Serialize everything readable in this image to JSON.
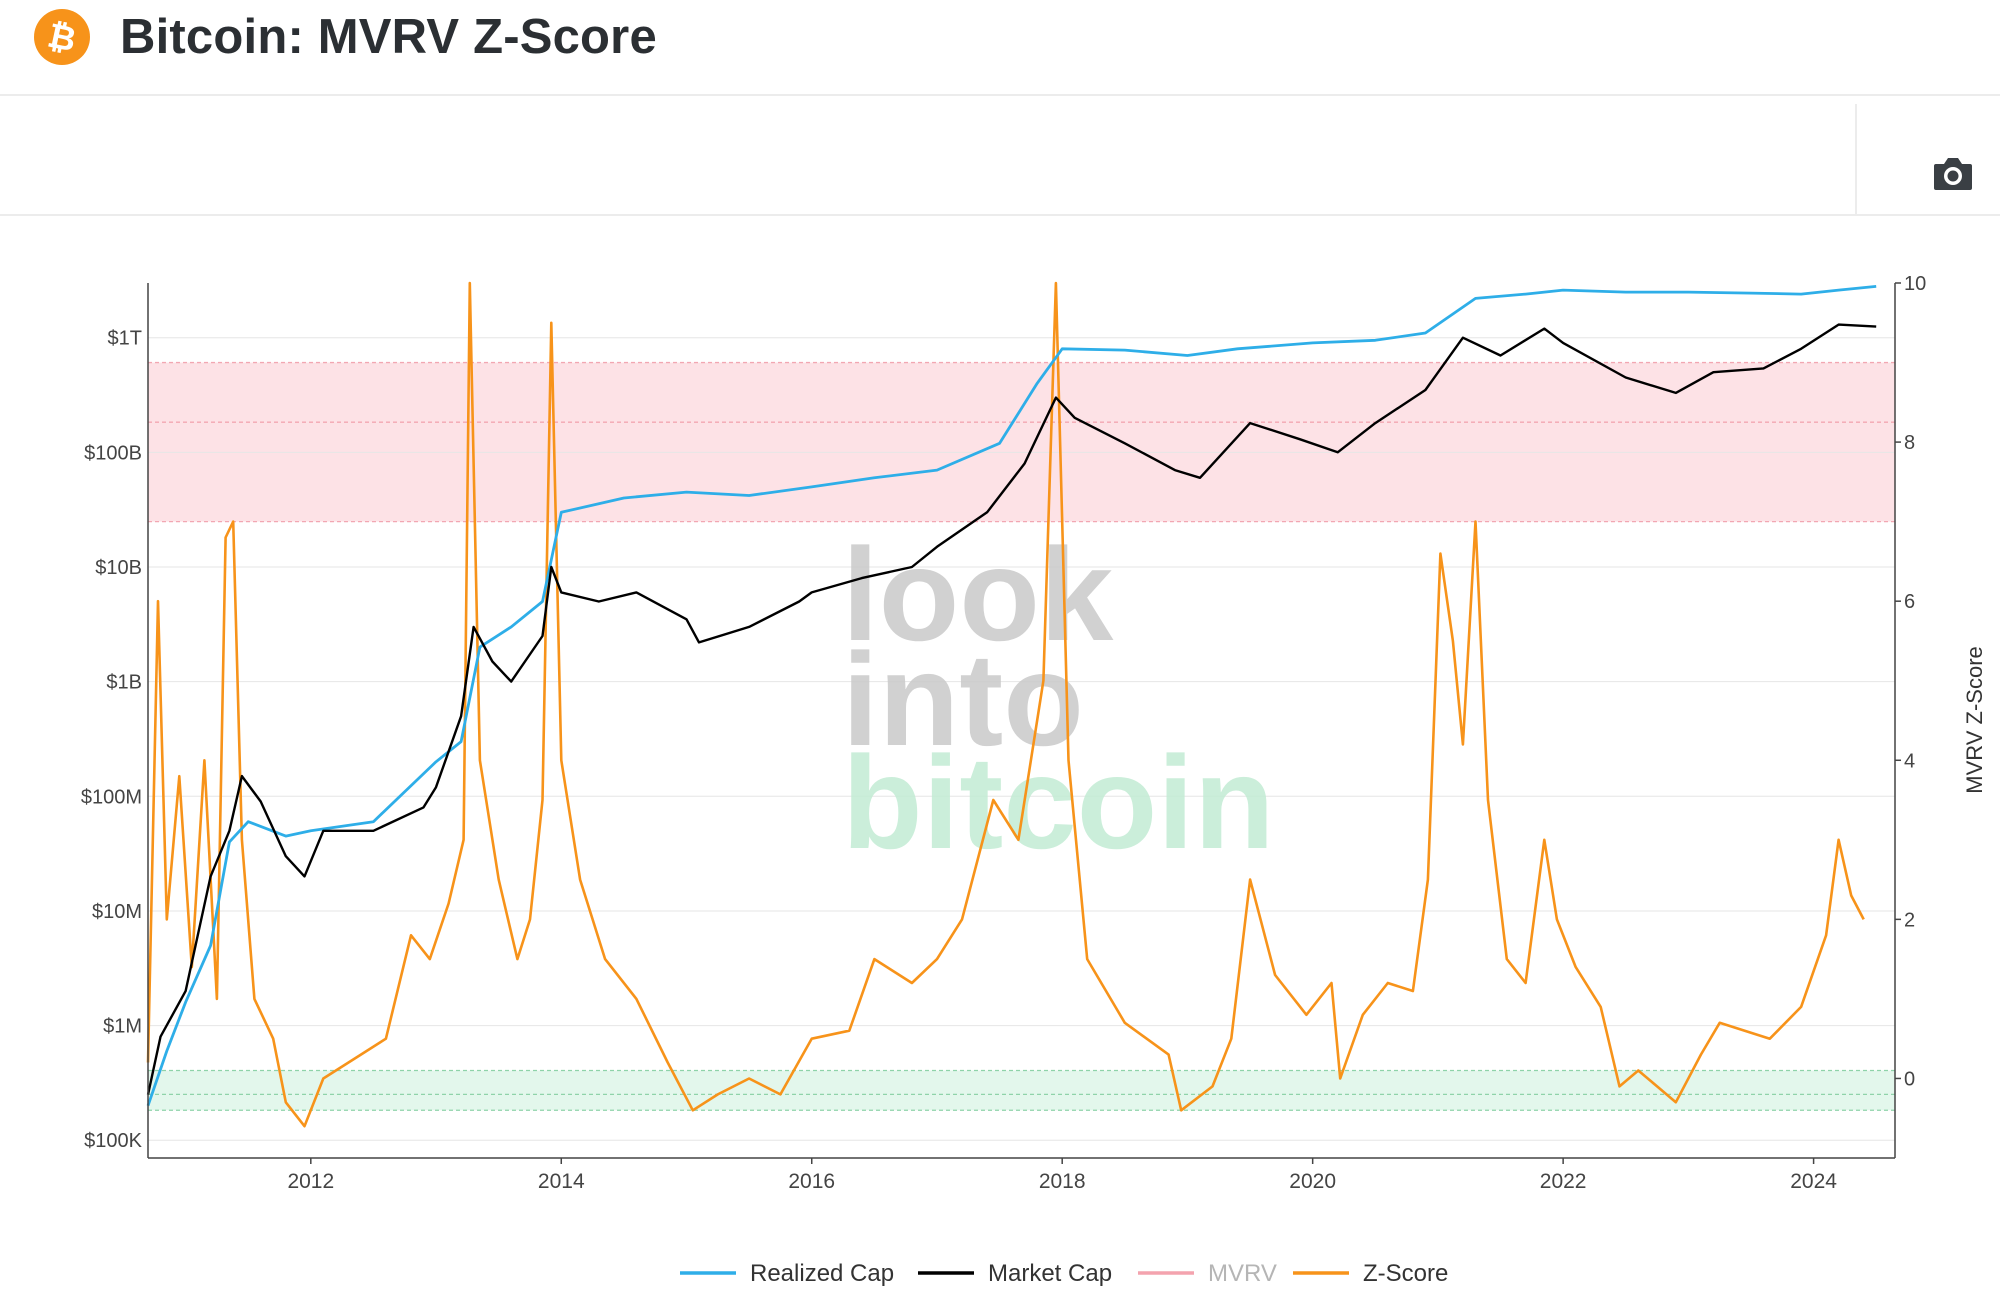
{
  "header": {
    "title": "Bitcoin: MVRV Z-Score",
    "logo_icon": "bitcoin-logo-icon",
    "logo_glyph": "₿",
    "logo_color": "#f7931a"
  },
  "toolbar": {
    "camera_icon": "camera-icon"
  },
  "watermark": {
    "line1": "look",
    "line2": "into",
    "line3": "bitcoin"
  },
  "chart_data": {
    "type": "line",
    "title": "",
    "xlabel": "",
    "y_left": {
      "scale": "log",
      "range": [
        70000,
        3000000000000
      ],
      "ticks": [
        100000,
        1000000,
        10000000,
        100000000,
        1000000000,
        10000000000,
        100000000000,
        1000000000000
      ],
      "tick_labels": [
        "$100K",
        "$1M",
        "$10M",
        "$100M",
        "$1B",
        "$10B",
        "$100B",
        "$1T"
      ]
    },
    "y_right": {
      "label": "MVRV Z-Score",
      "range": [
        -1,
        10
      ],
      "ticks": [
        0,
        2,
        4,
        6,
        8,
        10
      ],
      "tick_labels": [
        "0",
        "2",
        "4",
        "6",
        "8",
        "10"
      ]
    },
    "x": {
      "range": [
        2010.7,
        2024.65
      ],
      "ticks": [
        2012,
        2014,
        2016,
        2018,
        2020,
        2022,
        2024
      ],
      "tick_labels": [
        "2012",
        "2014",
        "2016",
        "2018",
        "2020",
        "2022",
        "2024"
      ]
    },
    "bands": [
      {
        "name": "overvalued-zone",
        "from": 7,
        "to": 9,
        "color": "#fde2e6",
        "lines": [
          7,
          8.25,
          9
        ]
      },
      {
        "name": "undervalued-zone",
        "from": -0.4,
        "to": 0.1,
        "color": "#e3f7ec",
        "lines": [
          -0.4,
          -0.2,
          0.1
        ]
      }
    ],
    "legend": {
      "placement": "bottom-center",
      "items": [
        {
          "name": "Realized Cap",
          "color": "#2eaee8",
          "muted": false
        },
        {
          "name": "Market Cap",
          "color": "#000000",
          "muted": false
        },
        {
          "name": "MVRV",
          "color": "#f4a3ae",
          "muted": true
        },
        {
          "name": "Z-Score",
          "color": "#f7931a",
          "muted": false
        }
      ]
    },
    "series": [
      {
        "name": "Realized Cap",
        "axis": "left",
        "color": "#2eaee8",
        "points": [
          [
            2010.7,
            200000
          ],
          [
            2010.85,
            600000
          ],
          [
            2011.0,
            1600000
          ],
          [
            2011.2,
            5000000
          ],
          [
            2011.35,
            40000000
          ],
          [
            2011.5,
            60000000
          ],
          [
            2011.8,
            45000000
          ],
          [
            2012.0,
            50000000
          ],
          [
            2012.5,
            60000000
          ],
          [
            2013.0,
            200000000
          ],
          [
            2013.2,
            300000000
          ],
          [
            2013.35,
            2000000000
          ],
          [
            2013.6,
            3000000000
          ],
          [
            2013.85,
            5000000000
          ],
          [
            2014.0,
            30000000000
          ],
          [
            2014.5,
            40000000000
          ],
          [
            2015.0,
            45000000000
          ],
          [
            2015.5,
            42000000000
          ],
          [
            2016.0,
            50000000000
          ],
          [
            2016.5,
            60000000000
          ],
          [
            2017.0,
            70000000000
          ],
          [
            2017.5,
            120000000000
          ],
          [
            2017.8,
            400000000000
          ],
          [
            2018.0,
            800000000000
          ],
          [
            2018.5,
            780000000000
          ],
          [
            2019.0,
            700000000000
          ],
          [
            2019.4,
            800000000000
          ],
          [
            2020.0,
            900000000000
          ],
          [
            2020.5,
            950000000000
          ],
          [
            2020.9,
            1100000000000
          ],
          [
            2021.3,
            2200000000000
          ],
          [
            2021.7,
            2400000000000
          ],
          [
            2022.0,
            2600000000000
          ],
          [
            2022.5,
            2500000000000
          ],
          [
            2023.0,
            2500000000000
          ],
          [
            2023.5,
            2450000000000
          ],
          [
            2023.9,
            2400000000000
          ],
          [
            2024.2,
            2600000000000
          ],
          [
            2024.5,
            2800000000000
          ]
        ]
      },
      {
        "name": "Market Cap",
        "axis": "left",
        "color": "#000000",
        "points": [
          [
            2010.7,
            250000
          ],
          [
            2010.8,
            800000
          ],
          [
            2011.0,
            2000000
          ],
          [
            2011.2,
            20000000
          ],
          [
            2011.35,
            50000000
          ],
          [
            2011.45,
            150000000
          ],
          [
            2011.6,
            90000000
          ],
          [
            2011.8,
            30000000
          ],
          [
            2011.95,
            20000000
          ],
          [
            2012.1,
            50000000
          ],
          [
            2012.5,
            50000000
          ],
          [
            2012.9,
            80000000
          ],
          [
            2013.0,
            120000000
          ],
          [
            2013.2,
            500000000
          ],
          [
            2013.3,
            3000000000
          ],
          [
            2013.45,
            1500000000
          ],
          [
            2013.6,
            1000000000
          ],
          [
            2013.85,
            2500000000
          ],
          [
            2013.92,
            10000000000
          ],
          [
            2014.0,
            6000000000
          ],
          [
            2014.3,
            5000000000
          ],
          [
            2014.6,
            6000000000
          ],
          [
            2015.0,
            3500000000
          ],
          [
            2015.1,
            2200000000
          ],
          [
            2015.5,
            3000000000
          ],
          [
            2015.9,
            5000000000
          ],
          [
            2016.0,
            6000000000
          ],
          [
            2016.4,
            8000000000
          ],
          [
            2016.8,
            10000000000
          ],
          [
            2017.0,
            15000000000
          ],
          [
            2017.4,
            30000000000
          ],
          [
            2017.7,
            80000000000
          ],
          [
            2017.95,
            300000000000
          ],
          [
            2018.1,
            200000000000
          ],
          [
            2018.5,
            120000000000
          ],
          [
            2018.9,
            70000000000
          ],
          [
            2019.1,
            60000000000
          ],
          [
            2019.5,
            180000000000
          ],
          [
            2019.9,
            130000000000
          ],
          [
            2020.2,
            100000000000
          ],
          [
            2020.5,
            180000000000
          ],
          [
            2020.9,
            350000000000
          ],
          [
            2021.2,
            1000000000000
          ],
          [
            2021.5,
            700000000000
          ],
          [
            2021.85,
            1200000000000
          ],
          [
            2022.0,
            900000000000
          ],
          [
            2022.5,
            450000000000
          ],
          [
            2022.9,
            330000000000
          ],
          [
            2023.2,
            500000000000
          ],
          [
            2023.6,
            540000000000
          ],
          [
            2023.9,
            800000000000
          ],
          [
            2024.2,
            1300000000000
          ],
          [
            2024.5,
            1250000000000
          ]
        ]
      },
      {
        "name": "Z-Score",
        "axis": "right",
        "color": "#f7931a",
        "points": [
          [
            2010.7,
            0.2
          ],
          [
            2010.78,
            6.0
          ],
          [
            2010.85,
            2.0
          ],
          [
            2010.95,
            3.8
          ],
          [
            2011.05,
            1.4
          ],
          [
            2011.15,
            4.0
          ],
          [
            2011.25,
            1.0
          ],
          [
            2011.32,
            6.8
          ],
          [
            2011.38,
            7.0
          ],
          [
            2011.45,
            3.0
          ],
          [
            2011.55,
            1.0
          ],
          [
            2011.7,
            0.5
          ],
          [
            2011.8,
            -0.3
          ],
          [
            2011.95,
            -0.6
          ],
          [
            2012.1,
            0.0
          ],
          [
            2012.4,
            0.3
          ],
          [
            2012.6,
            0.5
          ],
          [
            2012.8,
            1.8
          ],
          [
            2012.95,
            1.5
          ],
          [
            2013.1,
            2.2
          ],
          [
            2013.22,
            3.0
          ],
          [
            2013.27,
            10.0
          ],
          [
            2013.35,
            4.0
          ],
          [
            2013.5,
            2.5
          ],
          [
            2013.65,
            1.5
          ],
          [
            2013.75,
            2.0
          ],
          [
            2013.85,
            3.5
          ],
          [
            2013.92,
            9.5
          ],
          [
            2014.0,
            4.0
          ],
          [
            2014.15,
            2.5
          ],
          [
            2014.35,
            1.5
          ],
          [
            2014.6,
            1.0
          ],
          [
            2014.85,
            0.2
          ],
          [
            2015.05,
            -0.4
          ],
          [
            2015.25,
            -0.2
          ],
          [
            2015.5,
            0.0
          ],
          [
            2015.75,
            -0.2
          ],
          [
            2016.0,
            0.5
          ],
          [
            2016.3,
            0.6
          ],
          [
            2016.5,
            1.5
          ],
          [
            2016.8,
            1.2
          ],
          [
            2017.0,
            1.5
          ],
          [
            2017.2,
            2.0
          ],
          [
            2017.45,
            3.5
          ],
          [
            2017.65,
            3.0
          ],
          [
            2017.85,
            5.0
          ],
          [
            2017.95,
            10.0
          ],
          [
            2018.05,
            4.0
          ],
          [
            2018.2,
            1.5
          ],
          [
            2018.5,
            0.7
          ],
          [
            2018.85,
            0.3
          ],
          [
            2018.95,
            -0.4
          ],
          [
            2019.2,
            -0.1
          ],
          [
            2019.35,
            0.5
          ],
          [
            2019.5,
            2.5
          ],
          [
            2019.7,
            1.3
          ],
          [
            2019.95,
            0.8
          ],
          [
            2020.15,
            1.2
          ],
          [
            2020.22,
            0.0
          ],
          [
            2020.4,
            0.8
          ],
          [
            2020.6,
            1.2
          ],
          [
            2020.8,
            1.1
          ],
          [
            2020.92,
            2.5
          ],
          [
            2021.02,
            6.6
          ],
          [
            2021.12,
            5.5
          ],
          [
            2021.2,
            4.2
          ],
          [
            2021.3,
            7.0
          ],
          [
            2021.4,
            3.5
          ],
          [
            2021.55,
            1.5
          ],
          [
            2021.7,
            1.2
          ],
          [
            2021.85,
            3.0
          ],
          [
            2021.95,
            2.0
          ],
          [
            2022.1,
            1.4
          ],
          [
            2022.3,
            0.9
          ],
          [
            2022.45,
            -0.1
          ],
          [
            2022.6,
            0.1
          ],
          [
            2022.75,
            -0.1
          ],
          [
            2022.9,
            -0.3
          ],
          [
            2023.1,
            0.3
          ],
          [
            2023.25,
            0.7
          ],
          [
            2023.45,
            0.6
          ],
          [
            2023.65,
            0.5
          ],
          [
            2023.9,
            0.9
          ],
          [
            2024.1,
            1.8
          ],
          [
            2024.2,
            3.0
          ],
          [
            2024.3,
            2.3
          ],
          [
            2024.4,
            2.0
          ]
        ]
      }
    ]
  }
}
